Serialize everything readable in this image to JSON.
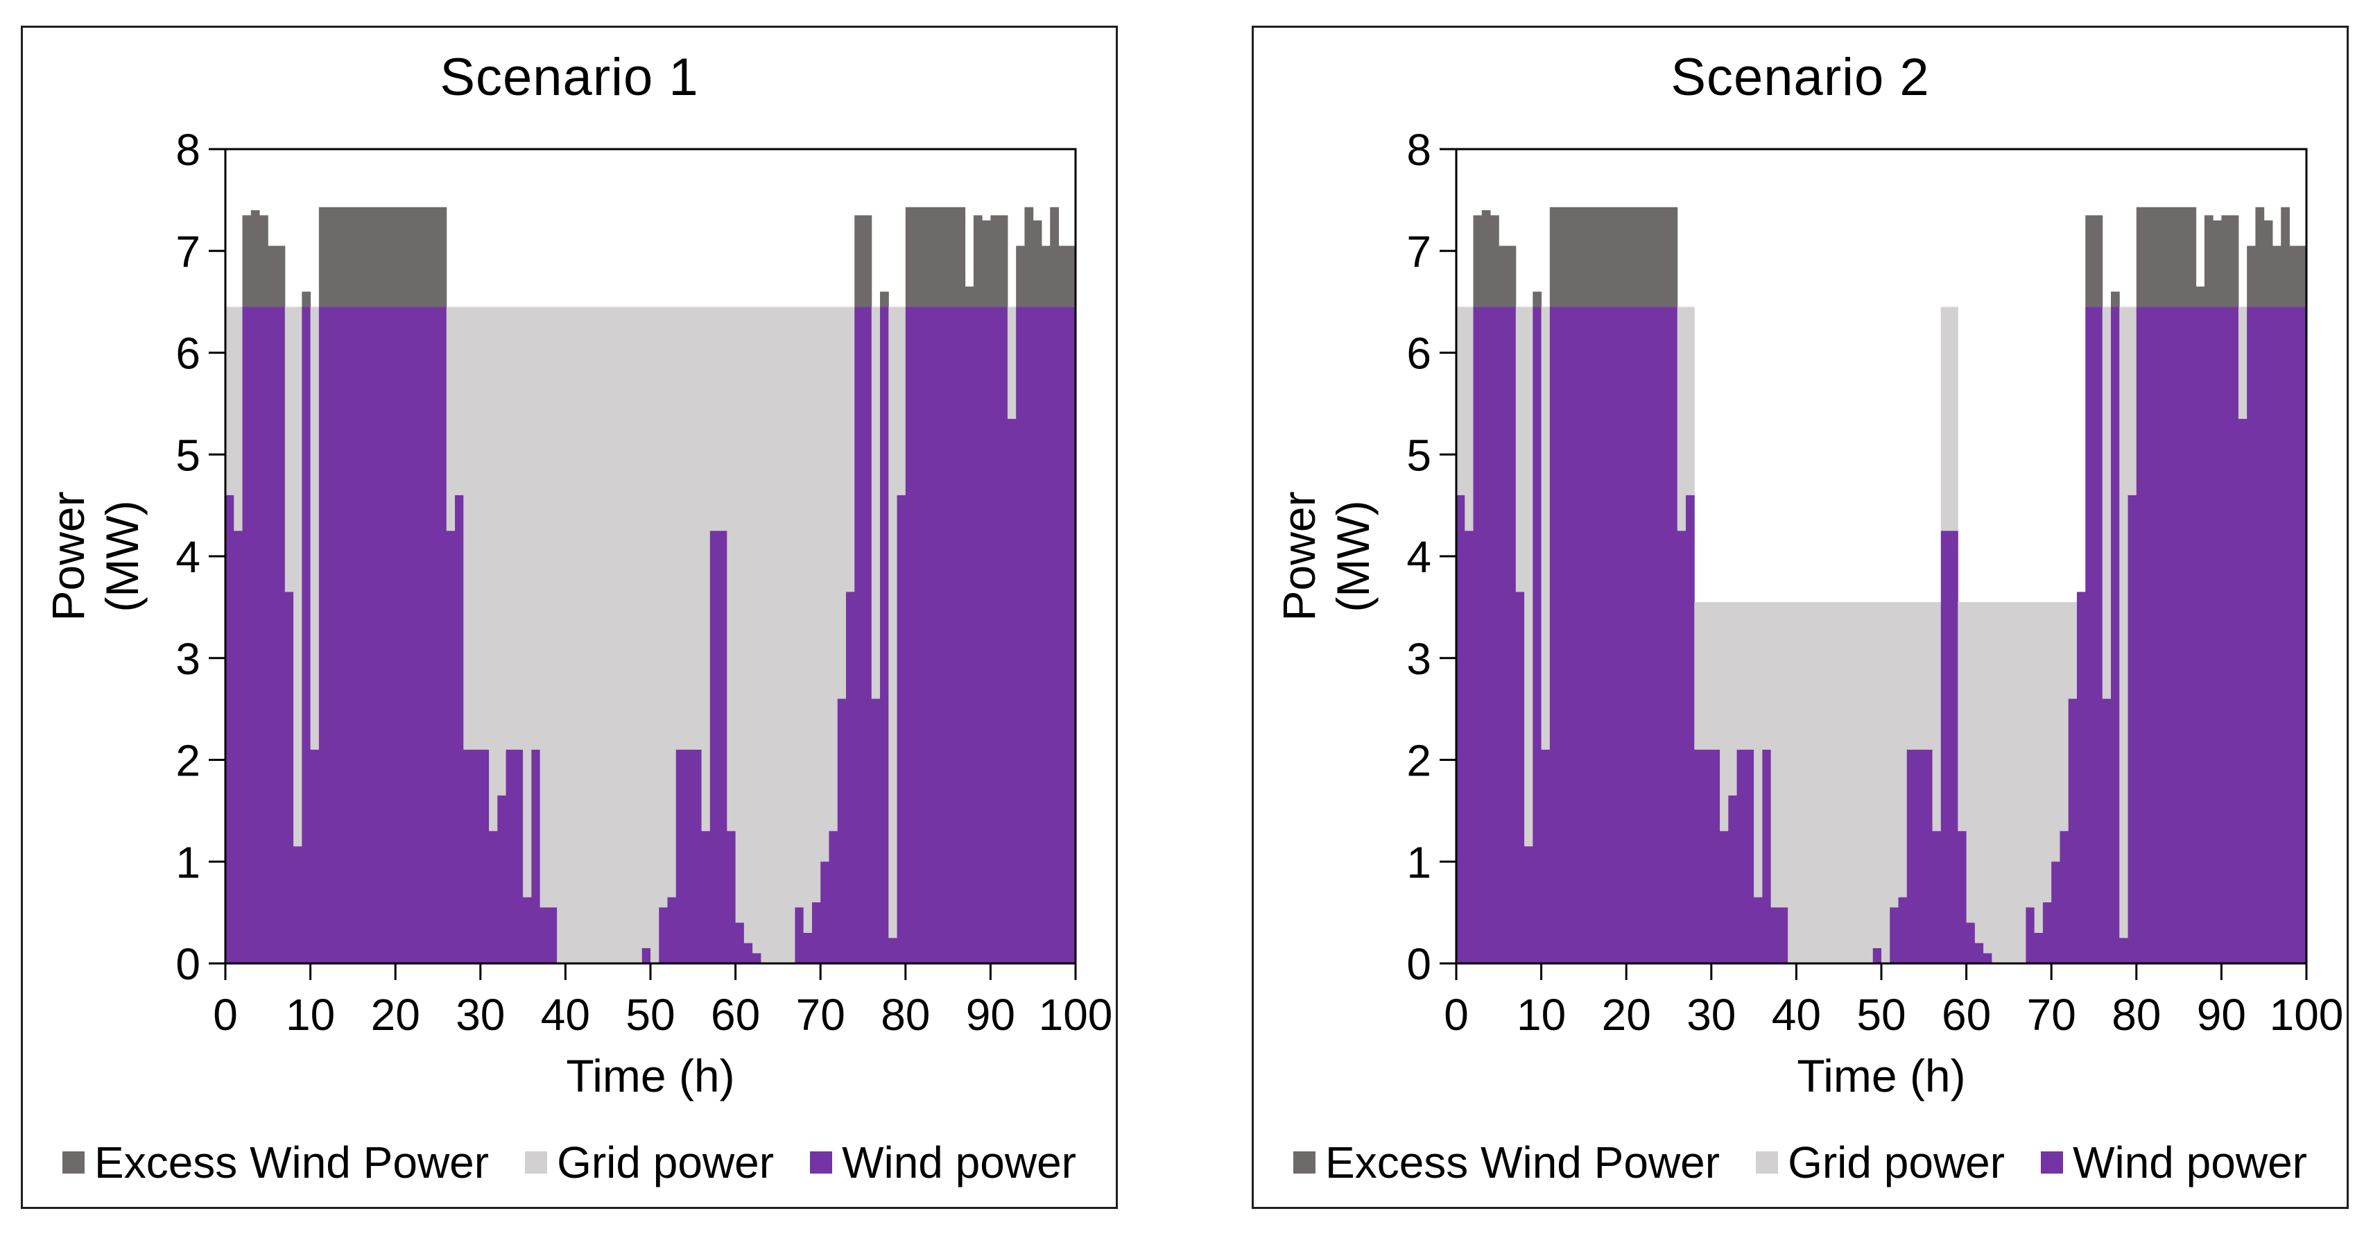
{
  "page": {
    "background": "#ffffff",
    "text_color": "#000000",
    "panel_border_color": "#1f1f1f"
  },
  "legend": {
    "items": [
      {
        "label": "Excess Wind Power",
        "swatch": "excess-wind-power-swatch",
        "color": "#6E6A6A"
      },
      {
        "label": "Grid power",
        "swatch": "grid-power-swatch",
        "color": "#D2D0D0"
      },
      {
        "label": "Wind power",
        "swatch": "wind-power-swatch",
        "color": "#7434A4"
      }
    ],
    "position": "bottom-center"
  },
  "axes": {
    "y": {
      "title_line1": "Power",
      "title_line2": "(MW)",
      "min": 0,
      "max": 8,
      "ticks": [
        0,
        1,
        2,
        3,
        4,
        5,
        6,
        7,
        8
      ]
    },
    "x": {
      "title": "Time (h)",
      "min": 0,
      "max": 100,
      "ticks": [
        0,
        10,
        20,
        30,
        40,
        50,
        60,
        70,
        80,
        90,
        100
      ]
    }
  },
  "chart_data": [
    {
      "type": "bar",
      "stacked": true,
      "title": "Scenario 1",
      "xlabel": "Time (h)",
      "ylabel": "Power (MW)",
      "xlim": [
        0,
        100
      ],
      "ylim": [
        0,
        8
      ],
      "grid": false,
      "legend_position": "bottom",
      "x_step_hours": 1,
      "excess_threshold_mw": 6.45,
      "grid_cap_segments": [
        {
          "from": 0,
          "to": 99,
          "cap": 6.45
        }
      ],
      "series": [
        {
          "name": "Wind power",
          "role": "wind",
          "color": "#7434A4",
          "values": [
            4.6,
            4.25,
            7.35,
            7.4,
            7.35,
            7.05,
            7.05,
            3.65,
            1.15,
            6.6,
            2.1,
            7.43,
            7.43,
            7.43,
            7.43,
            7.43,
            7.43,
            7.43,
            7.43,
            7.43,
            7.43,
            7.43,
            7.43,
            7.43,
            7.43,
            7.43,
            4.25,
            4.6,
            2.1,
            2.1,
            2.1,
            1.3,
            1.65,
            2.1,
            2.1,
            0.65,
            2.1,
            0.55,
            0.55,
            0,
            0,
            0,
            0,
            0,
            0,
            0,
            0,
            0,
            0,
            0.15,
            0,
            0.55,
            0.65,
            2.1,
            2.1,
            2.1,
            1.3,
            4.25,
            4.25,
            1.3,
            0.4,
            0.2,
            0.1,
            0,
            0,
            0,
            0,
            0.55,
            0.3,
            0.6,
            1.0,
            1.3,
            2.6,
            3.65,
            7.35,
            7.35,
            2.6,
            6.6,
            0.25,
            4.6,
            7.43,
            7.43,
            7.43,
            7.43,
            7.43,
            7.43,
            7.43,
            6.65,
            7.35,
            7.3,
            7.35,
            7.35,
            5.35,
            7.05,
            7.43,
            7.3,
            7.05,
            7.43,
            7.05,
            7.05
          ]
        },
        {
          "name": "Grid power",
          "role": "fill-from-wind-up-to-cap",
          "color": "#D2D0D0"
        },
        {
          "name": "Excess Wind Power",
          "role": "wind-above-threshold",
          "color": "#6E6A6A"
        }
      ]
    },
    {
      "type": "bar",
      "stacked": true,
      "title": "Scenario 2",
      "xlabel": "Time (h)",
      "ylabel": "Power (MW)",
      "xlim": [
        0,
        100
      ],
      "ylim": [
        0,
        8
      ],
      "grid": false,
      "legend_position": "bottom",
      "x_step_hours": 1,
      "excess_threshold_mw": 6.45,
      "grid_cap_segments": [
        {
          "from": 0,
          "to": 27,
          "cap": 6.45
        },
        {
          "from": 28,
          "to": 56,
          "cap": 3.55
        },
        {
          "from": 57,
          "to": 58,
          "cap": 6.45
        },
        {
          "from": 59,
          "to": 73,
          "cap": 3.55
        },
        {
          "from": 74,
          "to": 99,
          "cap": 6.45
        }
      ],
      "series": [
        {
          "name": "Wind power",
          "role": "wind",
          "color": "#7434A4",
          "values": [
            4.6,
            4.25,
            7.35,
            7.4,
            7.35,
            7.05,
            7.05,
            3.65,
            1.15,
            6.6,
            2.1,
            7.43,
            7.43,
            7.43,
            7.43,
            7.43,
            7.43,
            7.43,
            7.43,
            7.43,
            7.43,
            7.43,
            7.43,
            7.43,
            7.43,
            7.43,
            4.25,
            4.6,
            2.1,
            2.1,
            2.1,
            1.3,
            1.65,
            2.1,
            2.1,
            0.65,
            2.1,
            0.55,
            0.55,
            0,
            0,
            0,
            0,
            0,
            0,
            0,
            0,
            0,
            0,
            0.15,
            0,
            0.55,
            0.65,
            2.1,
            2.1,
            2.1,
            1.3,
            4.25,
            4.25,
            1.3,
            0.4,
            0.2,
            0.1,
            0,
            0,
            0,
            0,
            0.55,
            0.3,
            0.6,
            1.0,
            1.3,
            2.6,
            3.65,
            7.35,
            7.35,
            2.6,
            6.6,
            0.25,
            4.6,
            7.43,
            7.43,
            7.43,
            7.43,
            7.43,
            7.43,
            7.43,
            6.65,
            7.35,
            7.3,
            7.35,
            7.35,
            5.35,
            7.05,
            7.43,
            7.3,
            7.05,
            7.43,
            7.05,
            7.05
          ]
        },
        {
          "name": "Grid power",
          "role": "fill-from-wind-up-to-cap",
          "color": "#D2D0D0"
        },
        {
          "name": "Excess Wind Power",
          "role": "wind-above-threshold",
          "color": "#6E6A6A"
        }
      ]
    }
  ]
}
